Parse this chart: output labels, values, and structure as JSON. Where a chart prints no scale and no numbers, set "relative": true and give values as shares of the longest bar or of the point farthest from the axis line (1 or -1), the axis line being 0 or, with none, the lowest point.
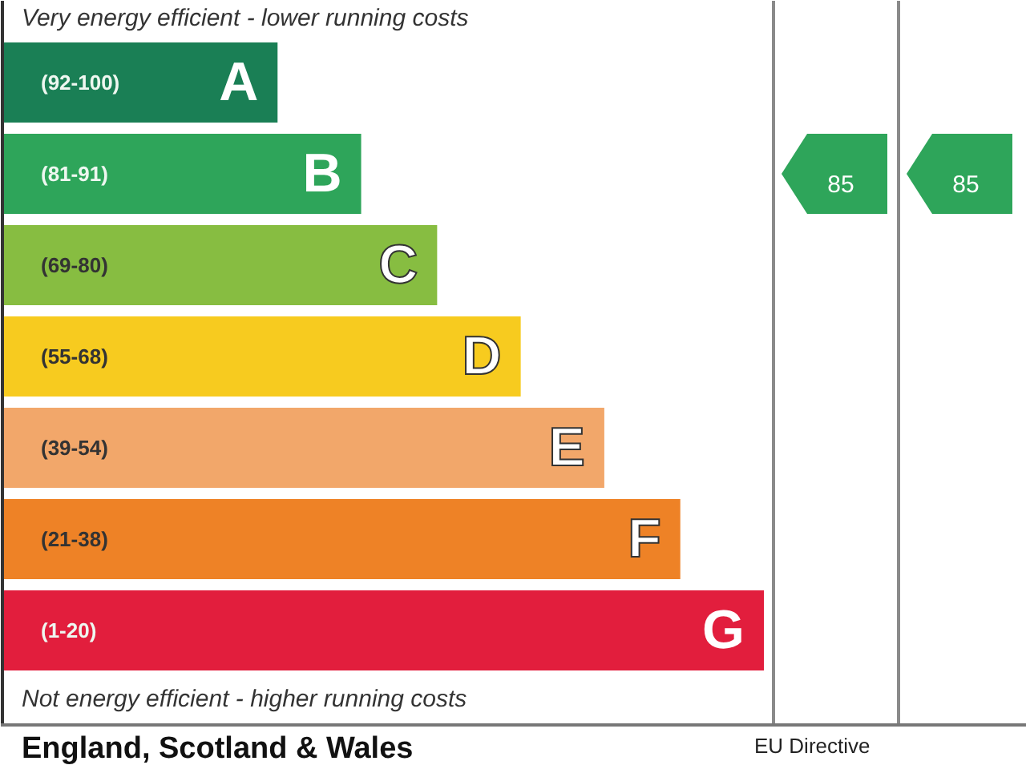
{
  "chart_data": {
    "type": "bar",
    "orientation": "horizontal",
    "relative": true,
    "categories": [
      "A",
      "B",
      "C",
      "D",
      "E",
      "F",
      "G"
    ],
    "values": [
      0.36,
      0.47,
      0.57,
      0.68,
      0.79,
      0.89,
      1
    ],
    "colors": [
      "#1a7f55",
      "#2ea55a",
      "#87bd41",
      "#f7cb1f",
      "#f2a76a",
      "#ee8226",
      "#e21e3d"
    ],
    "annotations": [
      "Very energy efficient - lower running costs",
      "Not energy efficient - higher running costs",
      "England, Scotland & Wales",
      "EU Directive",
      "(92-100)",
      "(81-91)",
      "(69-80)",
      "(55-68)",
      "(39-54)",
      "(21-38)",
      "(1-20)",
      "85",
      "85"
    ]
  }
}
